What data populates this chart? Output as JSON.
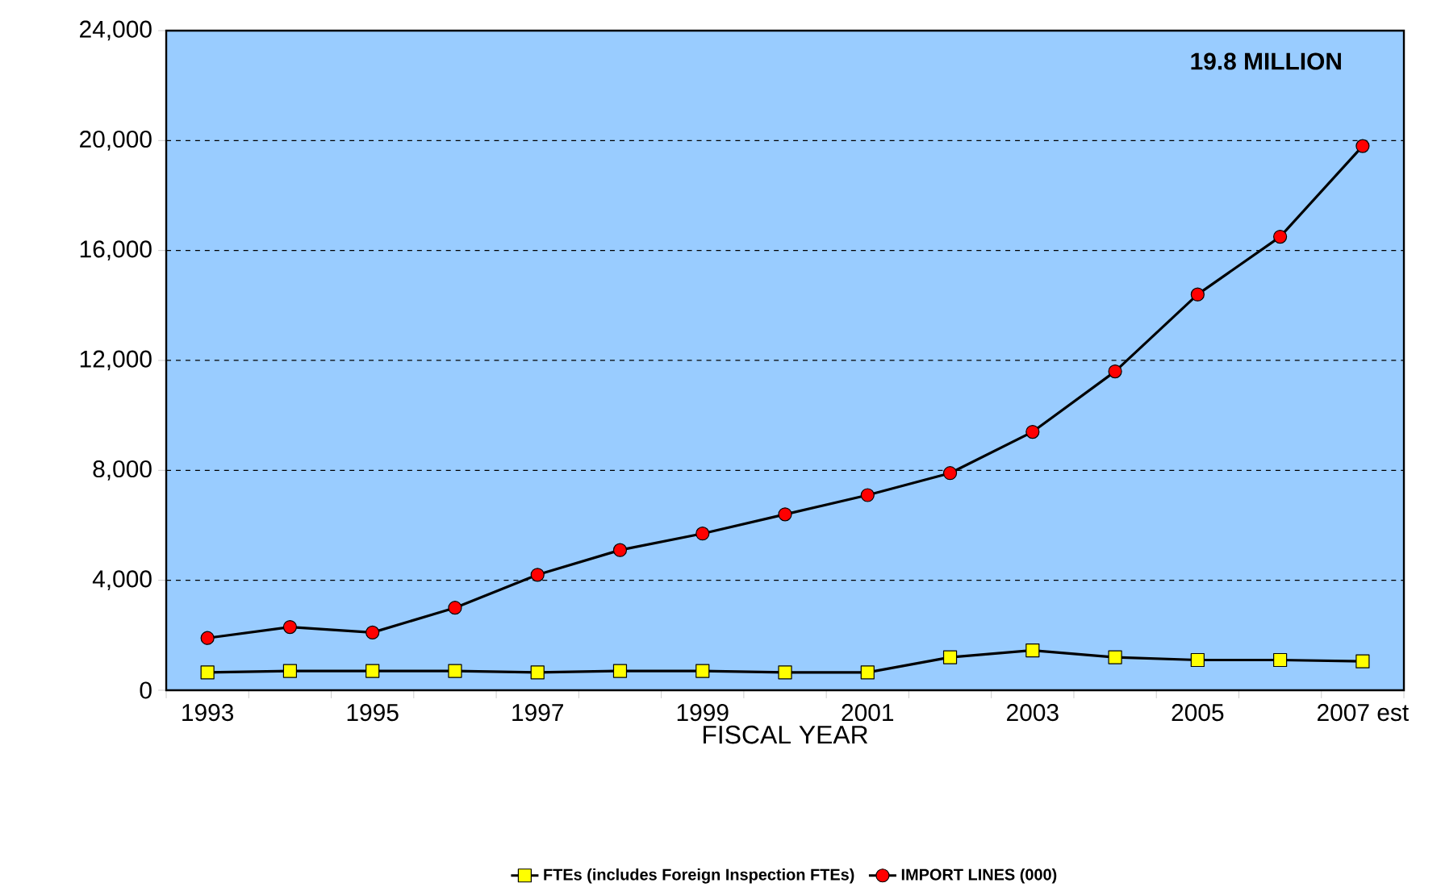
{
  "chart_data": {
    "type": "line",
    "categories": [
      "1993",
      null,
      "1995",
      null,
      "1997",
      null,
      "1999",
      null,
      "2001",
      null,
      "2003",
      null,
      "2005",
      null,
      "2007 est"
    ],
    "series": [
      {
        "name": "FTEs (includes Foreign Inspection FTEs)",
        "color": "#ffff00",
        "marker": "square",
        "values": [
          650,
          700,
          700,
          700,
          650,
          700,
          700,
          650,
          650,
          1200,
          1450,
          1200,
          1100,
          1100,
          1050
        ]
      },
      {
        "name": "IMPORT LINES (000)",
        "color": "#ff0000",
        "marker": "circle",
        "values": [
          1900,
          2300,
          2100,
          3000,
          4200,
          5100,
          5700,
          6400,
          7100,
          7900,
          9400,
          11600,
          14400,
          16500,
          19800
        ]
      }
    ],
    "xlabel": "FISCAL YEAR",
    "ylim": [
      0,
      24000
    ],
    "yticks": [
      {
        "value": 0,
        "label": "0"
      },
      {
        "value": 4000,
        "label": "4,000"
      },
      {
        "value": 8000,
        "label": "8,000"
      },
      {
        "value": 12000,
        "label": "12,000"
      },
      {
        "value": 16000,
        "label": "16,000"
      },
      {
        "value": 20000,
        "label": "20,000"
      },
      {
        "value": 24000,
        "label": "24,000"
      }
    ],
    "annotations": [
      "19.8 MILLION"
    ],
    "grid": "y",
    "legend": "bottom",
    "line_style": "solid"
  }
}
